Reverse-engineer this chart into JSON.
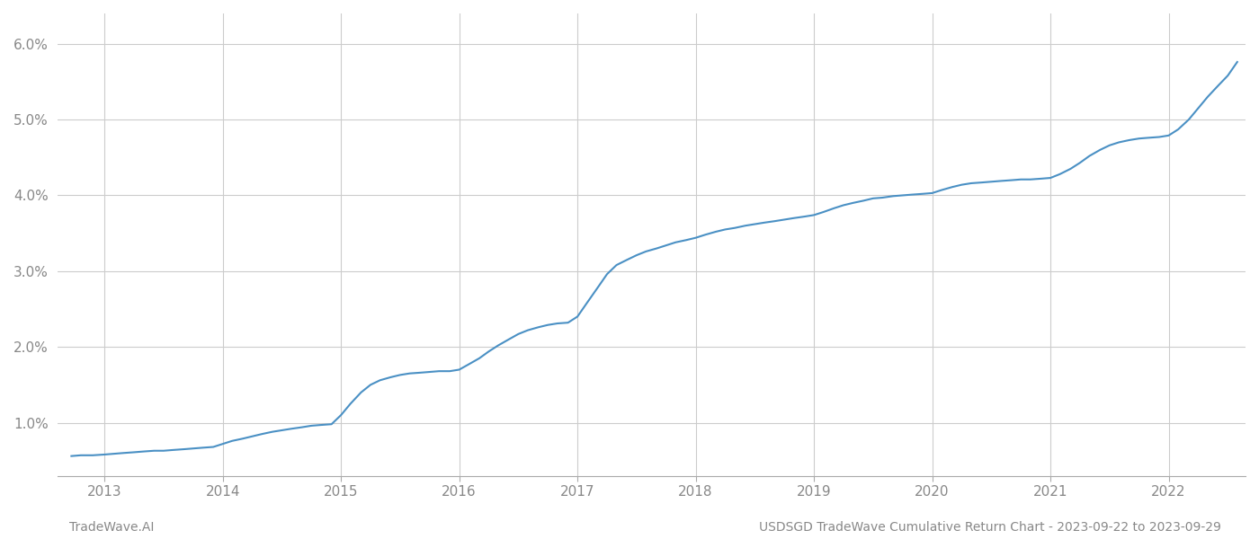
{
  "title": "USDSGD TradeWave Cumulative Return Chart - 2023-09-22 to 2023-09-29",
  "watermark": "TradeWave.AI",
  "line_color": "#4a90c4",
  "background_color": "#ffffff",
  "grid_color": "#cccccc",
  "x_years": [
    2013,
    2014,
    2015,
    2016,
    2017,
    2018,
    2019,
    2020,
    2021,
    2022
  ],
  "y_ticks": [
    0.01,
    0.02,
    0.03,
    0.04,
    0.05,
    0.06
  ],
  "ylim": [
    0.003,
    0.064
  ],
  "xlim": [
    2012.6,
    2022.65
  ],
  "data_x": [
    2012.72,
    2012.8,
    2012.9,
    2013.0,
    2013.08,
    2013.16,
    2013.25,
    2013.33,
    2013.42,
    2013.5,
    2013.58,
    2013.67,
    2013.75,
    2013.83,
    2013.92,
    2014.0,
    2014.08,
    2014.17,
    2014.25,
    2014.33,
    2014.42,
    2014.5,
    2014.58,
    2014.67,
    2014.75,
    2014.83,
    2014.92,
    2015.0,
    2015.08,
    2015.17,
    2015.25,
    2015.33,
    2015.42,
    2015.5,
    2015.58,
    2015.67,
    2015.75,
    2015.83,
    2015.92,
    2016.0,
    2016.08,
    2016.17,
    2016.25,
    2016.33,
    2016.42,
    2016.5,
    2016.58,
    2016.67,
    2016.75,
    2016.83,
    2016.92,
    2017.0,
    2017.08,
    2017.17,
    2017.25,
    2017.33,
    2017.42,
    2017.5,
    2017.58,
    2017.67,
    2017.75,
    2017.83,
    2017.92,
    2018.0,
    2018.08,
    2018.17,
    2018.25,
    2018.33,
    2018.42,
    2018.5,
    2018.58,
    2018.67,
    2018.75,
    2018.83,
    2018.92,
    2019.0,
    2019.08,
    2019.17,
    2019.25,
    2019.33,
    2019.42,
    2019.5,
    2019.58,
    2019.67,
    2019.75,
    2019.83,
    2019.92,
    2020.0,
    2020.08,
    2020.17,
    2020.25,
    2020.33,
    2020.42,
    2020.5,
    2020.58,
    2020.67,
    2020.75,
    2020.83,
    2020.92,
    2021.0,
    2021.08,
    2021.17,
    2021.25,
    2021.33,
    2021.42,
    2021.5,
    2021.58,
    2021.67,
    2021.75,
    2021.83,
    2021.92,
    2022.0,
    2022.08,
    2022.17,
    2022.25,
    2022.33,
    2022.42,
    2022.5,
    2022.58
  ],
  "data_y": [
    0.0056,
    0.0057,
    0.0057,
    0.0058,
    0.0059,
    0.006,
    0.0061,
    0.0062,
    0.0063,
    0.0063,
    0.0064,
    0.0065,
    0.0066,
    0.0067,
    0.0068,
    0.0072,
    0.0076,
    0.0079,
    0.0082,
    0.0085,
    0.0088,
    0.009,
    0.0092,
    0.0094,
    0.0096,
    0.0097,
    0.0098,
    0.011,
    0.0125,
    0.014,
    0.015,
    0.0156,
    0.016,
    0.0163,
    0.0165,
    0.0166,
    0.0167,
    0.0168,
    0.0168,
    0.017,
    0.0177,
    0.0185,
    0.0194,
    0.0202,
    0.021,
    0.0217,
    0.0222,
    0.0226,
    0.0229,
    0.0231,
    0.0232,
    0.024,
    0.0258,
    0.0278,
    0.0296,
    0.0308,
    0.0315,
    0.0321,
    0.0326,
    0.033,
    0.0334,
    0.0338,
    0.0341,
    0.0344,
    0.0348,
    0.0352,
    0.0355,
    0.0357,
    0.036,
    0.0362,
    0.0364,
    0.0366,
    0.0368,
    0.037,
    0.0372,
    0.0374,
    0.0378,
    0.0383,
    0.0387,
    0.039,
    0.0393,
    0.0396,
    0.0397,
    0.0399,
    0.04,
    0.0401,
    0.0402,
    0.0403,
    0.0407,
    0.0411,
    0.0414,
    0.0416,
    0.0417,
    0.0418,
    0.0419,
    0.042,
    0.0421,
    0.0421,
    0.0422,
    0.0423,
    0.0428,
    0.0435,
    0.0443,
    0.0452,
    0.046,
    0.0466,
    0.047,
    0.0473,
    0.0475,
    0.0476,
    0.0477,
    0.0479,
    0.0487,
    0.05,
    0.0515,
    0.053,
    0.0545,
    0.0558,
    0.0576
  ]
}
